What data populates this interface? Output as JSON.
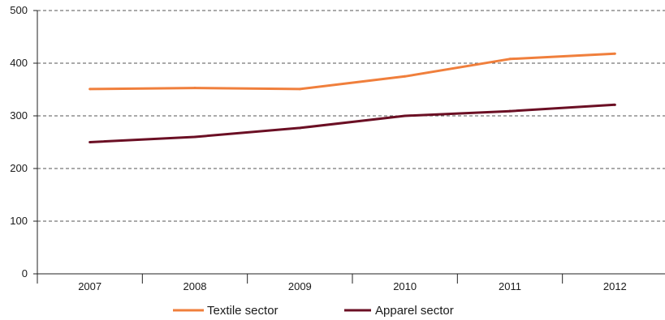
{
  "chart_data": {
    "type": "line",
    "title": "",
    "xlabel": "",
    "ylabel": "",
    "categories": [
      "2007",
      "2008",
      "2009",
      "2010",
      "2011",
      "2012"
    ],
    "ylim": [
      0,
      500
    ],
    "yticks": [
      0,
      100,
      200,
      300,
      400,
      500
    ],
    "grid": "horizontal dashed",
    "legend_position": "bottom",
    "series": [
      {
        "name": "Textile sector",
        "color": "#f07f3c",
        "values": [
          351,
          353,
          351,
          375,
          408,
          418
        ]
      },
      {
        "name": "Apparel sector",
        "color": "#6b0f24",
        "values": [
          250,
          260,
          277,
          300,
          309,
          321
        ]
      }
    ]
  }
}
